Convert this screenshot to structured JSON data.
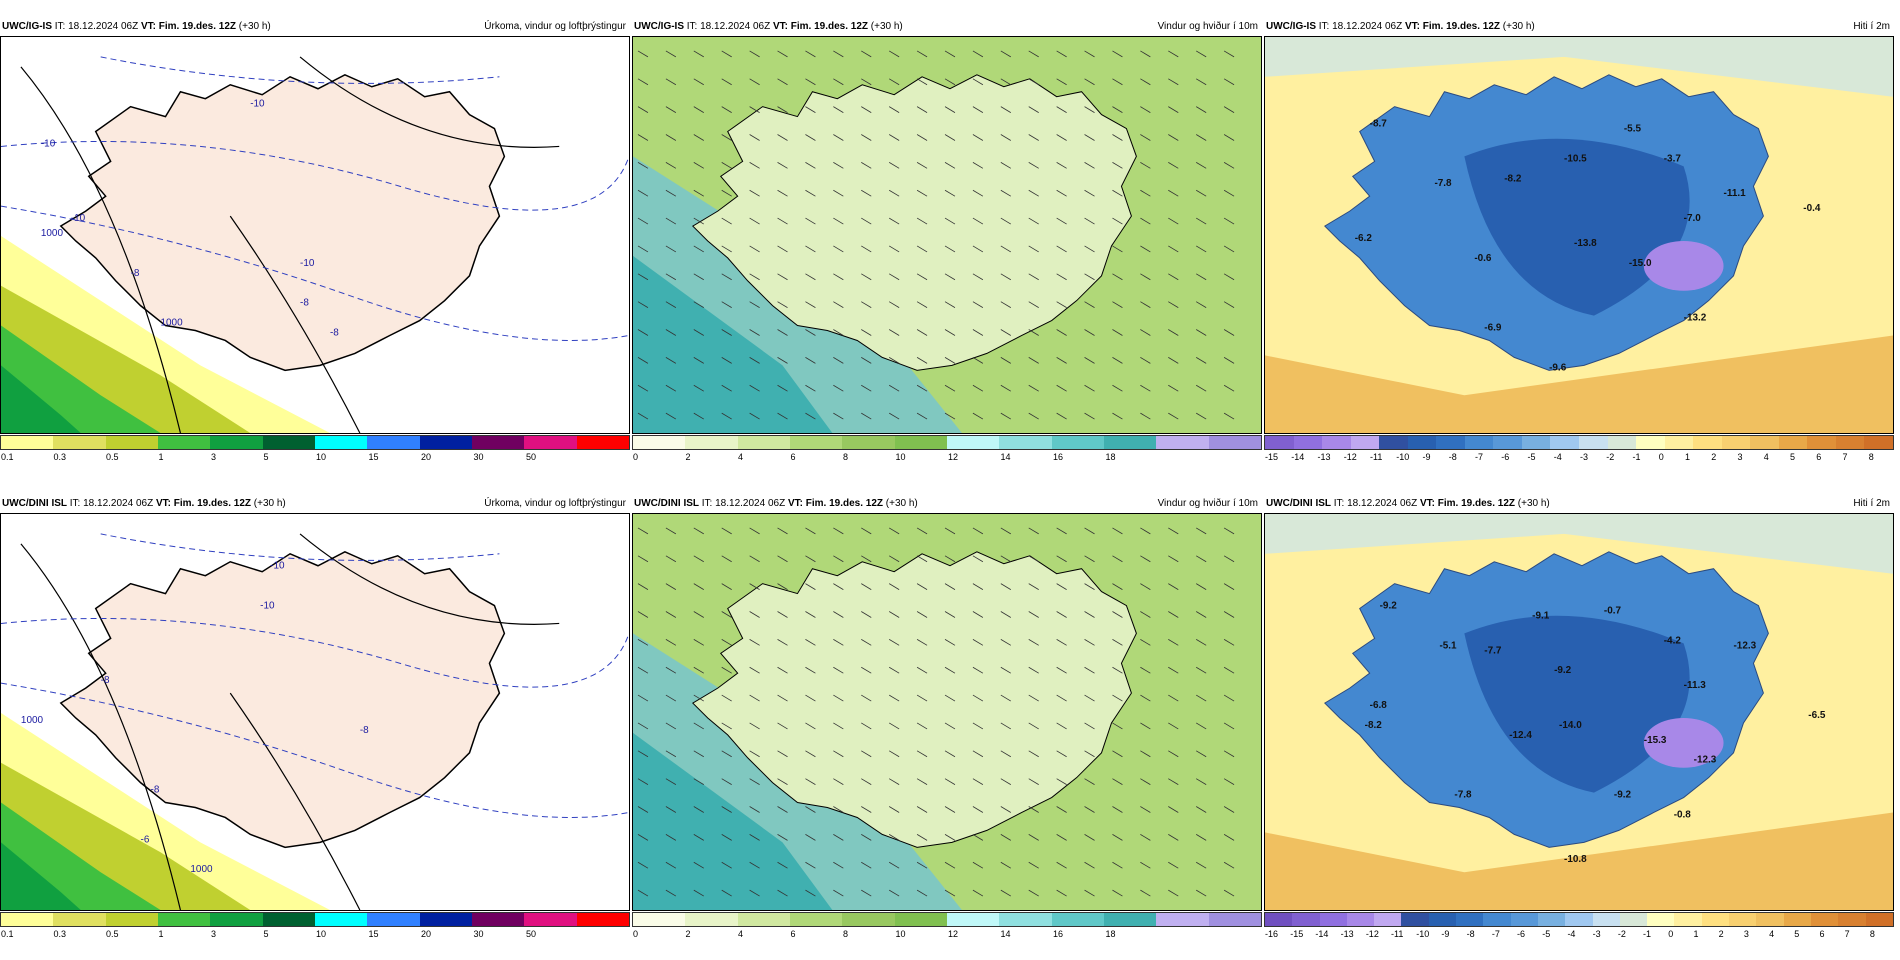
{
  "colors": {
    "precip": [
      "#ffff99",
      "#e0e060",
      "#c0d030",
      "#40c040",
      "#10a040",
      "#006030",
      "#00ffff",
      "#3080ff",
      "#0020a0",
      "#700060",
      "#e01080",
      "#ff0000"
    ],
    "wind": [
      "#fafce8",
      "#e8f4c8",
      "#d0e8a0",
      "#b0d878",
      "#98c860",
      "#80c050",
      "#c0f8f8",
      "#90e0e0",
      "#60c8c8",
      "#40b0b0",
      "#c0b0f0",
      "#a090e0"
    ],
    "temp_top": [
      "#8060d0",
      "#9070e0",
      "#a888e8",
      "#c0a8f0",
      "#3050a0",
      "#2860b0",
      "#3070c0",
      "#4488d0",
      "#5898d8",
      "#78b0e0",
      "#a0c8f0",
      "#c8e0f0",
      "#d8e8d8",
      "#ffffc0",
      "#fff0a0",
      "#ffe080",
      "#f8d070",
      "#f0c060",
      "#e8a848",
      "#e09038",
      "#d88030",
      "#d07028"
    ],
    "temp_bot": [
      "#7050c0",
      "#8060d0",
      "#9070e0",
      "#a888e8",
      "#c0a8f0",
      "#3050a0",
      "#2860b0",
      "#3070c0",
      "#4488d0",
      "#5898d8",
      "#78b0e0",
      "#a0c8f0",
      "#c8e0f0",
      "#d8e8d8",
      "#ffffc0",
      "#fff0a0",
      "#ffe080",
      "#f8d070",
      "#f0c060",
      "#e8a848",
      "#e09038",
      "#d88030",
      "#d07028"
    ]
  },
  "panels": [
    {
      "model": "UWC/IG-IS",
      "it": "IT: 18.12.2024 06Z",
      "vt": "VT: Fim. 19.des. 12Z",
      "lead": "(+30 h)",
      "title": "Úrkoma, vindur og loftþrýstingur",
      "scale": "precip",
      "ticks": [
        "0.1",
        "0.3",
        "0.5",
        "1",
        "3",
        "5",
        "10",
        "15",
        "20",
        "30",
        "50",
        ""
      ],
      "labels": [
        {
          "t": "-10"
        },
        {
          "t": "-10"
        },
        {
          "t": "-10"
        },
        {
          "t": "-10"
        },
        {
          "t": "-8"
        },
        {
          "t": "-8"
        },
        {
          "t": "-8"
        },
        {
          "t": "1000"
        },
        {
          "t": "1000"
        }
      ]
    },
    {
      "model": "UWC/IG-IS",
      "it": "IT: 18.12.2024 06Z",
      "vt": "VT: Fim. 19.des. 12Z",
      "lead": "(+30 h)",
      "title": "Vindur og hviður í 10m",
      "scale": "wind",
      "ticks": [
        "0",
        "2",
        "4",
        "6",
        "8",
        "10",
        "12",
        "14",
        "16",
        "18",
        "",
        ""
      ],
      "labels": []
    },
    {
      "model": "UWC/IG-IS",
      "it": "IT: 18.12.2024 06Z",
      "vt": "VT: Fim. 19.des. 12Z",
      "lead": "(+30 h)",
      "title": "Hiti í 2m",
      "scale": "temp_top",
      "ticks": [
        "-15",
        "-14",
        "-13",
        "-12",
        "-11",
        "-10",
        "-9",
        "-8",
        "-7",
        "-6",
        "-5",
        "-4",
        "-3",
        "-2",
        "-1",
        "0",
        "1",
        "2",
        "3",
        "4",
        "5",
        "6",
        "7",
        "8"
      ],
      "labels": [
        {
          "t": "-8.7"
        },
        {
          "t": "-7.8"
        },
        {
          "t": "-8.2"
        },
        {
          "t": "-10.5"
        },
        {
          "t": "-5.5"
        },
        {
          "t": "-3.7"
        },
        {
          "t": "-11.1"
        },
        {
          "t": "-0.4"
        },
        {
          "t": "-7.0"
        },
        {
          "t": "-6.2"
        },
        {
          "t": "-0.6"
        },
        {
          "t": "-13.8"
        },
        {
          "t": "-15.0"
        },
        {
          "t": "-6.9"
        },
        {
          "t": "-13.2"
        },
        {
          "t": "-9.6"
        }
      ]
    },
    {
      "model": "UWC/DINI ISL",
      "it": "IT: 18.12.2024 06Z",
      "vt": "VT: Fim. 19.des. 12Z",
      "lead": "(+30 h)",
      "title": "Úrkoma, vindur og loftþrýstingur",
      "scale": "precip",
      "ticks": [
        "0.1",
        "0.3",
        "0.5",
        "1",
        "3",
        "5",
        "10",
        "15",
        "20",
        "30",
        "50",
        ""
      ],
      "labels": [
        {
          "t": "-10"
        },
        {
          "t": "-10"
        },
        {
          "t": "-8"
        },
        {
          "t": "-8"
        },
        {
          "t": "-8"
        },
        {
          "t": "-6"
        },
        {
          "t": "1000"
        },
        {
          "t": "1000"
        }
      ]
    },
    {
      "model": "UWC/DINI ISL",
      "it": "IT: 18.12.2024 06Z",
      "vt": "VT: Fim. 19.des. 12Z",
      "lead": "(+30 h)",
      "title": "Vindur og hviður í 10m",
      "scale": "wind",
      "ticks": [
        "0",
        "2",
        "4",
        "6",
        "8",
        "10",
        "12",
        "14",
        "16",
        "18",
        "",
        ""
      ],
      "labels": []
    },
    {
      "model": "UWC/DINI ISL",
      "it": "IT: 18.12.2024 06Z",
      "vt": "VT: Fim. 19.des. 12Z",
      "lead": "(+30 h)",
      "title": "Hiti í 2m",
      "scale": "temp_bot",
      "ticks": [
        "-16",
        "-15",
        "-14",
        "-13",
        "-12",
        "-11",
        "-10",
        "-9",
        "-8",
        "-7",
        "-6",
        "-5",
        "-4",
        "-3",
        "-2",
        "-1",
        "0",
        "1",
        "2",
        "3",
        "4",
        "5",
        "6",
        "7",
        "8"
      ],
      "labels": [
        {
          "t": "-9.2"
        },
        {
          "t": "-5.1"
        },
        {
          "t": "-7.7"
        },
        {
          "t": "-9.1"
        },
        {
          "t": "-0.7"
        },
        {
          "t": "-4.2"
        },
        {
          "t": "-12.3"
        },
        {
          "t": "-9.2"
        },
        {
          "t": "-11.3"
        },
        {
          "t": "-6.8"
        },
        {
          "t": "-8.2"
        },
        {
          "t": "-12.4"
        },
        {
          "t": "-14.0"
        },
        {
          "t": "-15.3"
        },
        {
          "t": "-12.3"
        },
        {
          "t": "-6.5"
        },
        {
          "t": "-7.8"
        },
        {
          "t": "-9.2"
        },
        {
          "t": "-0.8"
        },
        {
          "t": "-10.8"
        }
      ]
    }
  ]
}
